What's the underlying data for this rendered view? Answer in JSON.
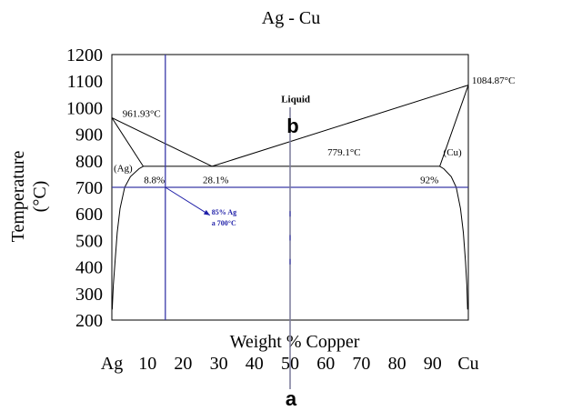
{
  "chart_data": {
    "type": "line",
    "title": "Ag - Cu",
    "xlabel": "Weight % Copper",
    "ylabel_line1": "Temperature",
    "ylabel_line2": "(°C)",
    "xlim": [
      0,
      100
    ],
    "ylim": [
      200,
      1200
    ],
    "x_ticks": [
      {
        "value": 0,
        "label": "Ag"
      },
      {
        "value": 10,
        "label": "10"
      },
      {
        "value": 20,
        "label": "20"
      },
      {
        "value": 30,
        "label": "30"
      },
      {
        "value": 40,
        "label": "40"
      },
      {
        "value": 50,
        "label": "50"
      },
      {
        "value": 60,
        "label": "60"
      },
      {
        "value": 70,
        "label": "70"
      },
      {
        "value": 80,
        "label": "80"
      },
      {
        "value": 90,
        "label": "90"
      },
      {
        "value": 100,
        "label": "Cu"
      }
    ],
    "y_ticks": [
      200,
      300,
      400,
      500,
      600,
      700,
      800,
      900,
      1000,
      1100,
      1200
    ],
    "grid": false,
    "series": [
      {
        "key": "liquidus-left",
        "points": [
          [
            0,
            961.93
          ],
          [
            28.1,
            779.1
          ]
        ]
      },
      {
        "key": "liquidus-right",
        "points": [
          [
            28.1,
            779.1
          ],
          [
            100,
            1084.87
          ]
        ]
      },
      {
        "key": "solidus-left",
        "points": [
          [
            0,
            961.93
          ],
          [
            8.8,
            779.1
          ]
        ]
      },
      {
        "key": "solidus-right",
        "points": [
          [
            92,
            779.1
          ],
          [
            100,
            1084.87
          ]
        ]
      },
      {
        "key": "eutectic-line",
        "points": [
          [
            8.8,
            779.1
          ],
          [
            92,
            779.1
          ]
        ]
      },
      {
        "key": "solvus-left",
        "points": [
          [
            8.8,
            779.1
          ],
          [
            7.6,
            770
          ],
          [
            5.2,
            740
          ],
          [
            3.6,
            700
          ],
          [
            2.3,
            620
          ],
          [
            1.5,
            530
          ],
          [
            0.9,
            420
          ],
          [
            0.4,
            330
          ],
          [
            0.1,
            240
          ]
        ]
      },
      {
        "key": "solvus-right",
        "points": [
          [
            92,
            779.1
          ],
          [
            93.1,
            770
          ],
          [
            95.2,
            740
          ],
          [
            96.6,
            700
          ],
          [
            97.8,
            620
          ],
          [
            98.6,
            530
          ],
          [
            99.2,
            420
          ],
          [
            99.6,
            330
          ],
          [
            99.8,
            240
          ]
        ]
      },
      {
        "key": "isotherm-700",
        "points": [
          [
            0,
            700
          ],
          [
            100,
            700
          ]
        ]
      },
      {
        "key": "composition-15",
        "points": [
          [
            15,
            200
          ],
          [
            15,
            1200
          ]
        ]
      }
    ],
    "composition_line": {
      "x": 50,
      "label_top": "b",
      "label_bottom": "a"
    },
    "composition_ticks": [
      {
        "x": 50,
        "y": 600
      },
      {
        "x": 50,
        "y": 510
      },
      {
        "x": 50,
        "y": 420
      }
    ],
    "annotations": [
      {
        "text": "Liquid",
        "x": 47.5,
        "y": 1020
      },
      {
        "text": "961.93°C",
        "x": 3,
        "y": 965
      },
      {
        "text": "1084.87°C",
        "x": 101,
        "y": 1090
      },
      {
        "text": "779.1°C",
        "x": 60.5,
        "y": 820
      },
      {
        "text": "(Ag)",
        "x": 0.5,
        "y": 760
      },
      {
        "text": "(Cu)",
        "x": 93,
        "y": 820
      },
      {
        "text": "8.8%",
        "x": 9,
        "y": 715
      },
      {
        "text": "28.1%",
        "x": 25.5,
        "y": 715
      },
      {
        "text": "92%",
        "x": 86.5,
        "y": 715
      }
    ],
    "arrow_note": {
      "from": [
        15,
        700
      ],
      "to": [
        27.5,
        595
      ],
      "line1": "85% Ag",
      "line2": "a 700°C",
      "color": "#1f1fa8",
      "label_x": 28,
      "label_y1": 597,
      "label_y2": 557
    },
    "colors": {
      "curve": "#000000",
      "guide": "#3a3aa8",
      "composition_line": "#7a7a9a"
    }
  }
}
